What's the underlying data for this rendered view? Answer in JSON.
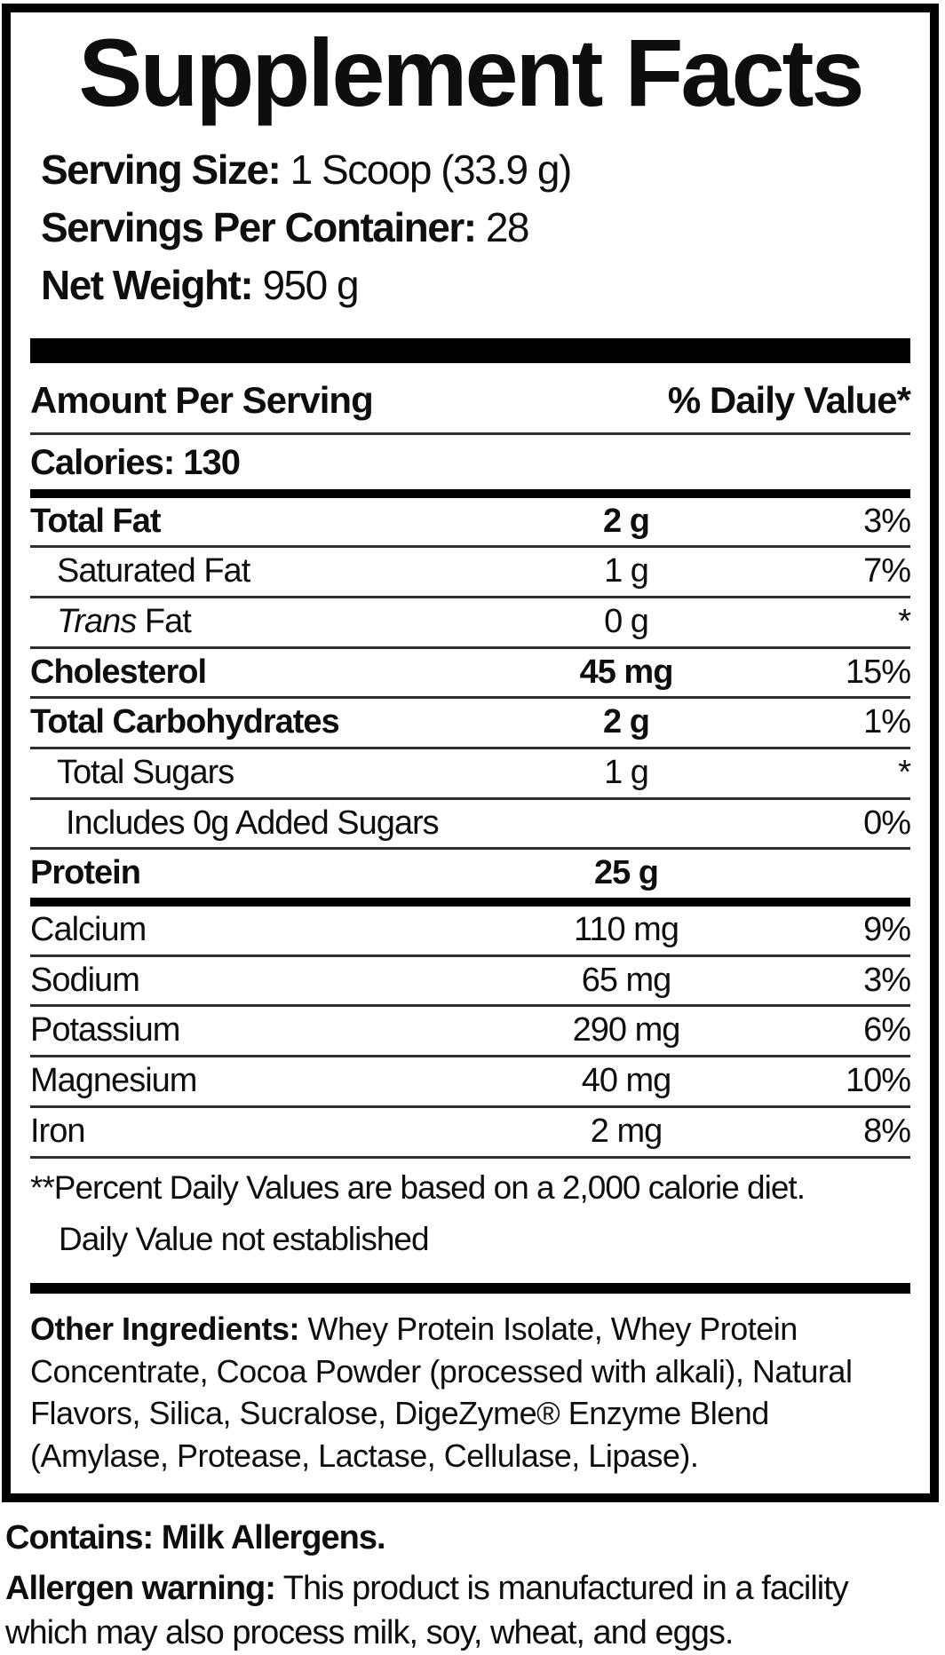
{
  "colors": {
    "ink": "#0e0e0e",
    "paper": "#ffffff",
    "line_thin": "#2e2e2e",
    "line_thick": "#000000"
  },
  "label": {
    "title": "Supplement Facts",
    "serving_info": [
      {
        "label": "Serving Size:",
        "value": "1 Scoop (33.9 g)"
      },
      {
        "label": "Servings Per Container:",
        "value": "28"
      },
      {
        "label": "Net Weight:",
        "value": "950 g"
      }
    ],
    "table": {
      "header_left": "Amount Per Serving",
      "header_right": "% Daily Value*",
      "calories_label": "Calories:",
      "calories_value": "130",
      "rows": [
        {
          "name": "Total Fat",
          "amount": "2 g",
          "dv": "3%",
          "bold": true,
          "indent": 0,
          "thick_after": false
        },
        {
          "name": "Saturated Fat",
          "amount": "1 g",
          "dv": "7%",
          "bold": false,
          "indent": 1,
          "thick_after": false
        },
        {
          "name_parts": [
            {
              "text": "Trans",
              "italic": true
            },
            {
              "text": " Fat",
              "italic": false
            }
          ],
          "amount": "0 g",
          "dv": "*",
          "bold": false,
          "indent": 1,
          "thick_after": false
        },
        {
          "name": "Cholesterol",
          "amount": "45 mg",
          "dv": "15%",
          "bold": true,
          "indent": 0,
          "thick_after": false
        },
        {
          "name": "Total Carbohydrates",
          "amount": "2 g",
          "dv": "1%",
          "bold": true,
          "indent": 0,
          "thick_after": false
        },
        {
          "name": "Total Sugars",
          "amount": "1 g",
          "dv": "*",
          "bold": false,
          "indent": 1,
          "thick_after": false
        },
        {
          "name": "Includes 0g Added Sugars",
          "amount": "",
          "dv": "0%",
          "bold": false,
          "indent": 2,
          "thick_after": false
        },
        {
          "name": "Protein",
          "amount": "25 g",
          "dv": "",
          "bold": true,
          "indent": 0,
          "thick_after": true
        },
        {
          "name": "Calcium",
          "amount": "110 mg",
          "dv": "9%",
          "bold": false,
          "indent": 0,
          "thick_after": false
        },
        {
          "name": "Sodium",
          "amount": "65 mg",
          "dv": "3%",
          "bold": false,
          "indent": 0,
          "thick_after": false
        },
        {
          "name": "Potassium",
          "amount": "290 mg",
          "dv": "6%",
          "bold": false,
          "indent": 0,
          "thick_after": false
        },
        {
          "name": "Magnesium",
          "amount": "40 mg",
          "dv": "10%",
          "bold": false,
          "indent": 0,
          "thick_after": false
        },
        {
          "name": "Iron",
          "amount": "2 mg",
          "dv": "8%",
          "bold": false,
          "indent": 0,
          "thick_after": false
        }
      ],
      "footnotes": [
        {
          "text": "**Percent Daily Values are based on a 2,000 calorie diet.",
          "indent": 0
        },
        {
          "text": "Daily Value not established",
          "indent": 1
        }
      ]
    },
    "other_ingredients": {
      "label": "Other Ingredients:",
      "text": "Whey Protein Isolate, Whey Protein Concentrate, Cocoa Powder (processed with alkali), Natural Flavors, Silica, Sucralose, DigeZyme® Enzyme Blend (Amylase, Protease, Lactase, Cellulase, Lipase)."
    }
  },
  "footer": {
    "contains": "Contains: Milk Allergens.",
    "allergen_label": "Allergen warning:",
    "allergen_line1": "This product is manufactured in a facility",
    "allergen_line2": "which may also process milk, soy, wheat, and eggs."
  }
}
